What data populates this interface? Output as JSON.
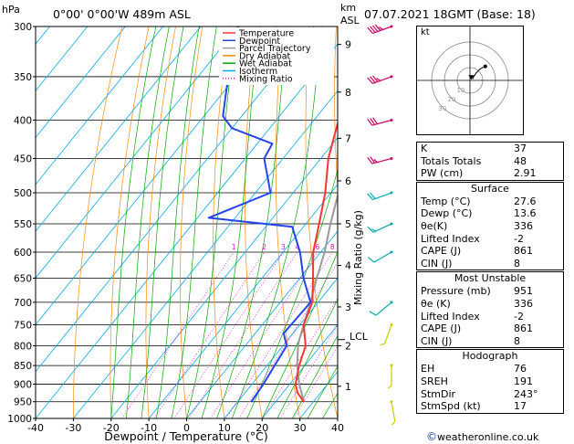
{
  "header": {
    "location": "0°00' 0°00'W 489m ASL",
    "datetime": "07.07.2021 18GMT (Base: 18)"
  },
  "axes": {
    "pressure_unit": "hPa",
    "height_unit_top": "km",
    "height_unit_bottom": "ASL",
    "xlabel": "Dewpoint / Temperature (°C)",
    "mixing_ratio_label": "Mixing Ratio (g/kg)",
    "lcl_label": "LCL"
  },
  "legend": [
    {
      "label": "Temperature",
      "color": "#ff3333",
      "style": "solid"
    },
    {
      "label": "Dewpoint",
      "color": "#2244ee",
      "style": "solid"
    },
    {
      "label": "Parcel Trajectory",
      "color": "#999999",
      "style": "solid"
    },
    {
      "label": "Dry Adiabat",
      "color": "#ff8800",
      "style": "solid"
    },
    {
      "label": "Wet Adiabat",
      "color": "#00aa00",
      "style": "solid"
    },
    {
      "label": "Isotherm",
      "color": "#00aaee",
      "style": "solid"
    },
    {
      "label": "Mixing Ratio",
      "color": "#ee00ee",
      "style": "dotted"
    }
  ],
  "colors": {
    "temperature": "#ff3333",
    "dewpoint": "#2244ee",
    "parcel": "#999999",
    "dry_adiabat": "#ff8800",
    "wet_adiabat": "#00aa00",
    "isotherm": "#00aaee",
    "mixing_ratio": "#ee00ee",
    "wind_upper": "#cc0066",
    "wind_mid": "#00aaaa",
    "wind_low": "#cccc00"
  },
  "chart_data": {
    "type": "skew-t",
    "title": "0°00' 0°00'W 489m ASL",
    "xlabel": "Dewpoint / Temperature (°C)",
    "ylabel": "hPa",
    "xlim": [
      -40,
      40
    ],
    "ylim": [
      1000,
      300
    ],
    "x_ticks": [
      -40,
      -30,
      -20,
      -10,
      0,
      10,
      20,
      30,
      40
    ],
    "pressure_levels": [
      300,
      350,
      400,
      450,
      500,
      550,
      600,
      650,
      700,
      750,
      800,
      850,
      900,
      950,
      1000
    ],
    "height_km_ticks": [
      {
        "km": 1,
        "p": 906
      },
      {
        "km": 2,
        "p": 800
      },
      {
        "km": 3,
        "p": 710
      },
      {
        "km": 4,
        "p": 625
      },
      {
        "km": 5,
        "p": 550
      },
      {
        "km": 6,
        "p": 482
      },
      {
        "km": 7,
        "p": 423
      },
      {
        "km": 8,
        "p": 367
      },
      {
        "km": 9,
        "p": 317
      }
    ],
    "lcl_pressure": 785,
    "mixing_ratios": [
      1,
      2,
      3,
      4,
      6,
      8,
      10,
      15,
      20,
      25
    ],
    "temperature": [
      {
        "p": 951,
        "t": 27.6
      },
      {
        "p": 925,
        "t": 24.0
      },
      {
        "p": 900,
        "t": 21.5
      },
      {
        "p": 850,
        "t": 18.5
      },
      {
        "p": 800,
        "t": 16.0
      },
      {
        "p": 750,
        "t": 11.0
      },
      {
        "p": 700,
        "t": 8.5
      },
      {
        "p": 650,
        "t": 3.5
      },
      {
        "p": 600,
        "t": -2.0
      },
      {
        "p": 550,
        "t": -6.5
      },
      {
        "p": 500,
        "t": -11.5
      },
      {
        "p": 450,
        "t": -18.0
      },
      {
        "p": 400,
        "t": -23.5
      },
      {
        "p": 350,
        "t": -32.5
      },
      {
        "p": 300,
        "t": -42.0
      }
    ],
    "dewpoint": [
      {
        "p": 951,
        "t": 13.6
      },
      {
        "p": 925,
        "t": 13.3
      },
      {
        "p": 900,
        "t": 13.0
      },
      {
        "p": 850,
        "t": 12.0
      },
      {
        "p": 800,
        "t": 11.0
      },
      {
        "p": 770,
        "t": 7.5
      },
      {
        "p": 700,
        "t": 8.0
      },
      {
        "p": 650,
        "t": 1.0
      },
      {
        "p": 600,
        "t": -5.5
      },
      {
        "p": 555,
        "t": -13.0
      },
      {
        "p": 540,
        "t": -37.0
      },
      {
        "p": 500,
        "t": -26.0
      },
      {
        "p": 450,
        "t": -35.0
      },
      {
        "p": 430,
        "t": -36.0
      },
      {
        "p": 410,
        "t": -50.0
      },
      {
        "p": 395,
        "t": -55.0
      },
      {
        "p": 350,
        "t": -62.0
      },
      {
        "p": 300,
        "t": -70.0
      }
    ],
    "parcel": [
      {
        "p": 951,
        "t": 27.6
      },
      {
        "p": 900,
        "t": 22.5
      },
      {
        "p": 850,
        "t": 18.0
      },
      {
        "p": 800,
        "t": 14.0
      },
      {
        "p": 785,
        "t": 13.0
      },
      {
        "p": 750,
        "t": 11.0
      },
      {
        "p": 700,
        "t": 8.0
      },
      {
        "p": 650,
        "t": 4.5
      },
      {
        "p": 600,
        "t": 1.0
      },
      {
        "p": 550,
        "t": -3.5
      },
      {
        "p": 500,
        "t": -8.0
      },
      {
        "p": 450,
        "t": -13.5
      },
      {
        "p": 400,
        "t": -20.0
      },
      {
        "p": 350,
        "t": -28.0
      },
      {
        "p": 300,
        "t": -37.0
      }
    ],
    "wind_barbs": [
      {
        "p": 300,
        "dir": 250,
        "spd": 45,
        "color": "#cc0066"
      },
      {
        "p": 350,
        "dir": 250,
        "spd": 35,
        "color": "#cc0066"
      },
      {
        "p": 400,
        "dir": 255,
        "spd": 30,
        "color": "#cc0066"
      },
      {
        "p": 450,
        "dir": 255,
        "spd": 25,
        "color": "#cc0066"
      },
      {
        "p": 500,
        "dir": 250,
        "spd": 20,
        "color": "#00aaaa"
      },
      {
        "p": 550,
        "dir": 245,
        "spd": 15,
        "color": "#00aaaa"
      },
      {
        "p": 600,
        "dir": 240,
        "spd": 10,
        "color": "#00aaaa"
      },
      {
        "p": 700,
        "dir": 230,
        "spd": 10,
        "color": "#00aaaa"
      },
      {
        "p": 750,
        "dir": 200,
        "spd": 5,
        "color": "#cccc00"
      },
      {
        "p": 850,
        "dir": 180,
        "spd": 5,
        "color": "#cccc00"
      },
      {
        "p": 950,
        "dir": 170,
        "spd": 5,
        "color": "#cccc00"
      }
    ]
  },
  "hodograph": {
    "label": "kt",
    "ring_labels": [
      "10",
      "20",
      "30"
    ],
    "points": [
      {
        "u": 2,
        "v": 1
      },
      {
        "u": 3,
        "v": 3
      },
      {
        "u": 5,
        "v": 6
      },
      {
        "u": 8,
        "v": 9
      },
      {
        "u": 12,
        "v": 11
      }
    ],
    "storm_motion": {
      "u": 1,
      "v": 2
    }
  },
  "indices": {
    "basic": [
      {
        "label": "K",
        "value": "37"
      },
      {
        "label": "Totals Totals",
        "value": "48"
      },
      {
        "label": "PW (cm)",
        "value": "2.91"
      }
    ],
    "surface_title": "Surface",
    "surface": [
      {
        "label": "Temp (°C)",
        "value": "27.6"
      },
      {
        "label": "Dewp (°C)",
        "value": "13.6"
      },
      {
        "label": "θe(K)",
        "value": "336"
      },
      {
        "label": "Lifted Index",
        "value": "-2"
      },
      {
        "label": "CAPE (J)",
        "value": "861"
      },
      {
        "label": "CIN (J)",
        "value": "8"
      }
    ],
    "unstable_title": "Most Unstable",
    "unstable": [
      {
        "label": "Pressure (mb)",
        "value": "951"
      },
      {
        "label": "θe (K)",
        "value": "336"
      },
      {
        "label": "Lifted Index",
        "value": "-2"
      },
      {
        "label": "CAPE (J)",
        "value": "861"
      },
      {
        "label": "CIN (J)",
        "value": "8"
      }
    ],
    "hodograph_title": "Hodograph",
    "hodograph": [
      {
        "label": "EH",
        "value": "76"
      },
      {
        "label": "SREH",
        "value": "191"
      },
      {
        "label": "StmDir",
        "value": "243°"
      },
      {
        "label": "StmSpd (kt)",
        "value": "17"
      }
    ]
  },
  "credit": {
    "symbol": "©",
    "text": "weatheronline.co.uk"
  }
}
